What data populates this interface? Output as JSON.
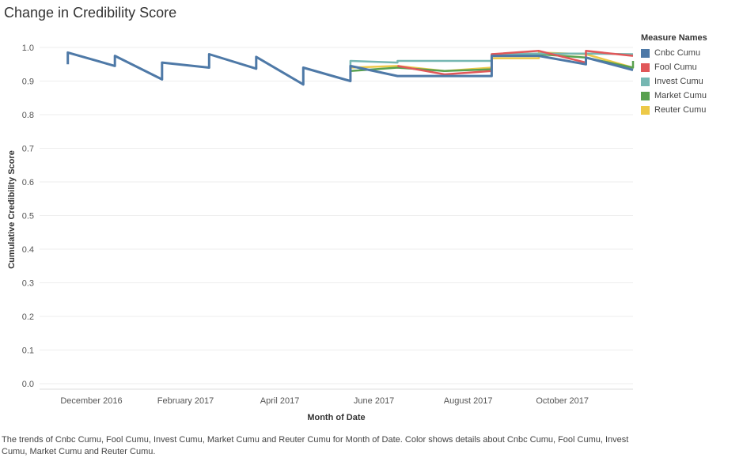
{
  "chart_data": {
    "type": "line",
    "title": "Change in Credibility Score",
    "xlabel": "Month of Date",
    "ylabel": "Cumulative Credibility Score",
    "ylim": [
      0,
      1.05
    ],
    "yticks": [
      "0.0",
      "0.1",
      "0.2",
      "0.3",
      "0.4",
      "0.5",
      "0.6",
      "0.7",
      "0.8",
      "0.9",
      "1.0"
    ],
    "x_ticks": [
      {
        "label": "December 2016",
        "value": 0.5
      },
      {
        "label": "February 2017",
        "value": 2.5
      },
      {
        "label": "April 2017",
        "value": 4.5
      },
      {
        "label": "June 2017",
        "value": 6.5
      },
      {
        "label": "August 2017",
        "value": 8.5
      },
      {
        "label": "October 2017",
        "value": 10.5
      }
    ],
    "xlim": [
      -0.6,
      12.0
    ],
    "grid": true,
    "legend_position": "right",
    "legend_title": "Measure Names",
    "series": [
      {
        "name": "Reuter Cumu",
        "color": "#EDC948",
        "points": [
          [
            6.0,
            0.94
          ],
          [
            7.0,
            0.945
          ],
          [
            8.0,
            0.93
          ],
          [
            9.0,
            0.94
          ],
          [
            9.0,
            0.968
          ],
          [
            10.0,
            0.968
          ],
          [
            10.0,
            0.985
          ],
          [
            11.0,
            0.98
          ],
          [
            12.0,
            0.94
          ]
        ]
      },
      {
        "name": "Market Cumu",
        "color": "#59A14F",
        "points": [
          [
            6.0,
            0.93
          ],
          [
            7.0,
            0.94
          ],
          [
            8.0,
            0.93
          ],
          [
            9.0,
            0.935
          ],
          [
            9.0,
            0.975
          ],
          [
            10.0,
            0.98
          ],
          [
            11.0,
            0.97
          ],
          [
            12.0,
            0.94
          ],
          [
            12.0,
            0.96
          ]
        ]
      },
      {
        "name": "Invest Cumu",
        "color": "#76B7B2",
        "points": [
          [
            6.0,
            0.94
          ],
          [
            6.0,
            0.96
          ],
          [
            7.0,
            0.955
          ],
          [
            7.0,
            0.96
          ],
          [
            8.0,
            0.96
          ],
          [
            9.0,
            0.96
          ],
          [
            9.0,
            0.98
          ],
          [
            10.0,
            0.982
          ],
          [
            11.0,
            0.982
          ],
          [
            12.0,
            0.98
          ]
        ]
      },
      {
        "name": "Fool Cumu",
        "color": "#E15759",
        "points": [
          [
            7.0,
            0.945
          ],
          [
            8.0,
            0.92
          ],
          [
            9.0,
            0.93
          ],
          [
            9.0,
            0.98
          ],
          [
            10.0,
            0.99
          ],
          [
            11.0,
            0.955
          ],
          [
            11.0,
            0.99
          ],
          [
            12.0,
            0.975
          ]
        ]
      },
      {
        "name": "Cnbc Cumu",
        "color": "#4E79A7",
        "points": [
          [
            0.0,
            0.95
          ],
          [
            0.0,
            0.985
          ],
          [
            1.0,
            0.945
          ],
          [
            1.0,
            0.975
          ],
          [
            2.0,
            0.905
          ],
          [
            2.0,
            0.955
          ],
          [
            3.0,
            0.94
          ],
          [
            3.0,
            0.98
          ],
          [
            4.0,
            0.937
          ],
          [
            4.0,
            0.972
          ],
          [
            5.0,
            0.89
          ],
          [
            5.0,
            0.94
          ],
          [
            6.0,
            0.9
          ],
          [
            6.0,
            0.945
          ],
          [
            7.0,
            0.915
          ],
          [
            8.0,
            0.915
          ],
          [
            9.0,
            0.915
          ],
          [
            9.0,
            0.975
          ],
          [
            10.0,
            0.975
          ],
          [
            11.0,
            0.95
          ],
          [
            11.0,
            0.97
          ],
          [
            12.0,
            0.933
          ]
        ]
      }
    ],
    "legend_order": [
      "Cnbc Cumu",
      "Fool Cumu",
      "Invest Cumu",
      "Market Cumu",
      "Reuter Cumu"
    ]
  },
  "caption": "The trends of Cnbc Cumu, Fool Cumu, Invest Cumu, Market Cumu and Reuter Cumu for Month of Date.  Color shows details about Cnbc Cumu, Fool Cumu, Invest Cumu, Market Cumu and Reuter Cumu."
}
